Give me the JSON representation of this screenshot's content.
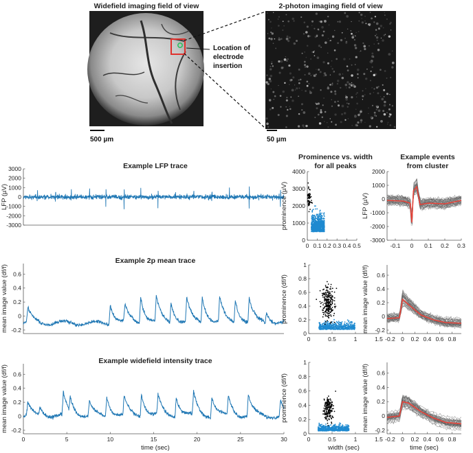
{
  "figure": {
    "widefield_title": "Widefield imaging field of view",
    "twophoton_title": "2-photon imaging field of view",
    "scale_widefield": "500 µm",
    "scale_twophoton": "50 µm",
    "electrode_label": [
      "Location of",
      "electrode",
      "insertion"
    ]
  },
  "colors": {
    "trace": "#1f77b4",
    "scatter_blue": "#1f8ad0",
    "scatter_black": "#000000",
    "event_gray": "#9a9a9a",
    "event_mean": "#e8443a",
    "marker_red": "#e0302c",
    "marker_green": "#22c25a"
  },
  "chart_data": [
    {
      "id": "lfp_trace",
      "type": "line",
      "title": "Example LFP trace",
      "ylabel": "LFP (µV)",
      "xlim": [
        0,
        30
      ],
      "ylim": [
        -3000,
        3000
      ],
      "yticks": [
        -3000,
        -2000,
        -1000,
        0,
        1000,
        2000,
        3000
      ],
      "spike_times": [
        1.6,
        3.7,
        5.5,
        7.6,
        9.5,
        11.6,
        13.5,
        15.5,
        17.5,
        19.6,
        21.7,
        23.7,
        26.0,
        29.6
      ],
      "spike_peak": 1100,
      "spike_trough": -1600,
      "baseline": 0
    },
    {
      "id": "lfp_scatter",
      "type": "scatter",
      "title": "Prominence vs. width\nfor all peaks",
      "ylabel": "prominence (µV)",
      "xlim": [
        0,
        0.5
      ],
      "ylim": [
        0,
        4000
      ],
      "xticks": [
        0,
        0.1,
        0.2,
        0.3,
        0.4,
        0.5
      ],
      "yticks": [
        0,
        1000,
        2000,
        3000,
        4000
      ],
      "clusters": [
        {
          "name": "blue",
          "center": [
            0.08,
            500
          ],
          "spread": [
            0.06,
            450
          ],
          "n": 900
        },
        {
          "name": "black",
          "center": [
            0.02,
            2400
          ],
          "spread": [
            0.012,
            350
          ],
          "n": 60
        }
      ]
    },
    {
      "id": "lfp_events",
      "type": "line",
      "title": "Example events\nfrom cluster",
      "ylabel": "LFP (µV)",
      "xlim": [
        -0.15,
        0.3
      ],
      "ylim": [
        -3000,
        2000
      ],
      "xticks": [
        -0.1,
        0,
        0.1,
        0.2,
        0.3
      ],
      "yticks": [
        -3000,
        -2000,
        -1000,
        0,
        1000,
        2000
      ],
      "mean_points": [
        [
          -0.15,
          -100
        ],
        [
          -0.05,
          -150
        ],
        [
          -0.01,
          -300
        ],
        [
          0.0,
          -1700
        ],
        [
          0.01,
          600
        ],
        [
          0.03,
          900
        ],
        [
          0.05,
          -400
        ],
        [
          0.1,
          -300
        ],
        [
          0.2,
          -350
        ],
        [
          0.3,
          -100
        ]
      ]
    },
    {
      "id": "twop_trace",
      "type": "line",
      "title": "Example 2p mean trace",
      "ylabel": "mean image value (df/f)",
      "xlim": [
        0,
        30
      ],
      "ylim": [
        -0.25,
        0.75
      ],
      "yticks": [
        -0.2,
        0,
        0.2,
        0.4,
        0.6
      ],
      "event_times": [
        0.5,
        10.0,
        11.7,
        13.5,
        15.3,
        17.0,
        18.8,
        20.6,
        22.6,
        24.4,
        26.0,
        28.0
      ],
      "event_amplitudes": [
        0.2,
        0.28,
        0.25,
        0.38,
        0.36,
        0.28,
        0.34,
        0.37,
        0.36,
        0.32,
        0.33,
        0.15
      ],
      "baseline": -0.1
    },
    {
      "id": "twop_scatter",
      "type": "scatter",
      "ylabel": "prominence (df/f)",
      "xlim": [
        0,
        1.5
      ],
      "ylim": [
        0,
        1
      ],
      "xticks": [
        0,
        0.5,
        1,
        1.5
      ],
      "yticks": [
        0,
        0.2,
        0.4,
        0.6,
        0.8,
        1
      ],
      "clusters": [
        {
          "name": "blue",
          "center": [
            0.45,
            0.06
          ],
          "spread": [
            0.35,
            0.05
          ],
          "n": 600
        },
        {
          "name": "black",
          "center": [
            0.42,
            0.45
          ],
          "spread": [
            0.06,
            0.12
          ],
          "n": 250
        }
      ]
    },
    {
      "id": "twop_events",
      "type": "line",
      "ylabel": "mean image value (df/f)",
      "xlim": [
        -0.25,
        0.95
      ],
      "ylim": [
        -0.25,
        0.75
      ],
      "xticks": [
        -0.2,
        0,
        0.2,
        0.4,
        0.6,
        0.8
      ],
      "yticks": [
        -0.2,
        0,
        0.2,
        0.4,
        0.6
      ],
      "mean_points": [
        [
          -0.25,
          -0.03
        ],
        [
          -0.05,
          -0.02
        ],
        [
          0.0,
          0.25
        ],
        [
          0.1,
          0.17
        ],
        [
          0.3,
          0.02
        ],
        [
          0.5,
          -0.05
        ],
        [
          0.7,
          -0.09
        ],
        [
          0.95,
          -0.1
        ]
      ]
    },
    {
      "id": "wf_trace",
      "type": "line",
      "title": "Example widefield intensity trace",
      "ylabel": "mean image value (df/f)",
      "xlabel": "time (sec)",
      "xlim": [
        0,
        30
      ],
      "ylim": [
        -0.25,
        0.75
      ],
      "xticks": [
        0,
        5,
        10,
        15,
        20,
        25,
        30
      ],
      "yticks": [
        -0.2,
        0,
        0.2,
        0.4,
        0.6
      ],
      "event_times": [
        0.5,
        1.9,
        4.6,
        5.4,
        7.6,
        9.6,
        11.6,
        13.6,
        15.5,
        17.6,
        19.6,
        21.7,
        23.6,
        25.9,
        29.6
      ],
      "event_amplitudes": [
        0.18,
        0.12,
        0.32,
        0.2,
        0.2,
        0.28,
        0.27,
        0.32,
        0.28,
        0.28,
        0.33,
        0.28,
        0.27,
        0.3,
        0.22
      ],
      "baseline": 0.0
    },
    {
      "id": "wf_scatter",
      "type": "scatter",
      "ylabel": "prominence (df/f)",
      "xlabel": "width (sec)",
      "xlim": [
        0,
        1.5
      ],
      "ylim": [
        0,
        1
      ],
      "xticks": [
        0,
        0.5,
        1,
        1.5
      ],
      "yticks": [
        0,
        0.2,
        0.4,
        0.6,
        0.8,
        1
      ],
      "clusters": [
        {
          "name": "blue",
          "center": [
            0.4,
            0.04
          ],
          "spread": [
            0.3,
            0.035
          ],
          "n": 600
        },
        {
          "name": "black",
          "center": [
            0.42,
            0.35
          ],
          "spread": [
            0.05,
            0.09
          ],
          "n": 180
        }
      ]
    },
    {
      "id": "wf_events",
      "type": "line",
      "ylabel": "mean image value (df/f)",
      "xlabel": "time (sec)",
      "xlim": [
        -0.25,
        0.95
      ],
      "ylim": [
        -0.25,
        0.75
      ],
      "xticks": [
        -0.2,
        0,
        0.2,
        0.4,
        0.6,
        0.8
      ],
      "yticks": [
        -0.2,
        0,
        0.2,
        0.4,
        0.6
      ],
      "mean_points": [
        [
          -0.25,
          -0.02
        ],
        [
          -0.05,
          0.0
        ],
        [
          0.0,
          0.2
        ],
        [
          0.1,
          0.18
        ],
        [
          0.3,
          0.06
        ],
        [
          0.5,
          -0.03
        ],
        [
          0.7,
          -0.09
        ],
        [
          0.95,
          -0.11
        ]
      ]
    }
  ]
}
